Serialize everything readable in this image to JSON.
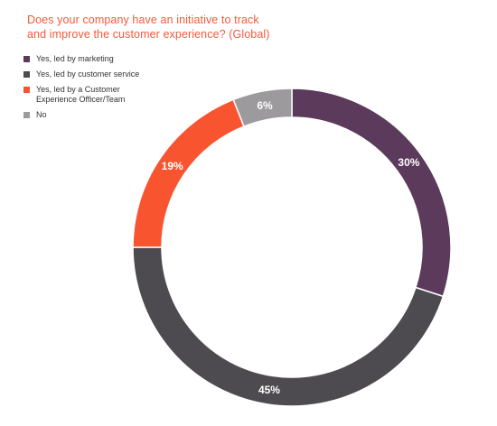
{
  "chart_data": {
    "type": "pie",
    "title_lines": [
      "Does your company have an initiative to track",
      "and improve the customer experience? (Global)"
    ],
    "slices": [
      {
        "label": "Yes, led by marketing",
        "label_lines": [
          "Yes, led by marketing"
        ],
        "value": 30,
        "value_label": "30%",
        "color": "#5b3a5c"
      },
      {
        "label": "Yes, led by customer service",
        "label_lines": [
          "Yes, led by customer service"
        ],
        "value": 45,
        "value_label": "45%",
        "color": "#4d4b50"
      },
      {
        "label": "Yes, led by a Customer Experience Officer/Team",
        "label_lines": [
          "Yes, led by a Customer",
          "Experience Officer/Team"
        ],
        "value": 19,
        "value_label": "19%",
        "color": "#f95430"
      },
      {
        "label": "No",
        "label_lines": [
          "No"
        ],
        "value": 6,
        "value_label": "6%",
        "color": "#9c9a9d"
      }
    ],
    "legend_position": "top-left"
  }
}
